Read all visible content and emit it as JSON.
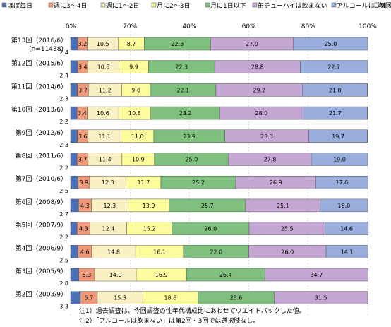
{
  "chart_data": {
    "type": "bar",
    "orientation": "horizontal",
    "stacked": true,
    "xlim": [
      0,
      100
    ],
    "x_ticks": [
      "0%",
      "20%",
      "40%",
      "60%",
      "80%",
      "100%"
    ],
    "legend_position": "top",
    "categories": [
      "第13回（2016/6）",
      "第12回（2015/6）",
      "第11回（2014/6）",
      "第10回（2013/6）",
      "第9回（2012/6）",
      "第8回（2011/6）",
      "第7回（2010/6）",
      "第6回（2008/9）",
      "第5回（2007/9）",
      "第4回（2006/9）",
      "第3回（2005/9）",
      "第2回（2003/9）"
    ],
    "category_notes": [
      "(n=11438)",
      "",
      "",
      "",
      "",
      "",
      "",
      "",
      "",
      "",
      "",
      ""
    ],
    "series": [
      {
        "name": "ほぼ毎日",
        "color": "#4a6fb5",
        "values": [
          2.4,
          2.4,
          2.3,
          2.2,
          2.3,
          2.2,
          2.5,
          2.7,
          2.2,
          2.5,
          2.8,
          3.3
        ]
      },
      {
        "name": "週に3～4日",
        "color": "#f09a7a",
        "values": [
          3.2,
          3.4,
          3.7,
          3.4,
          3.6,
          3.7,
          3.9,
          4.3,
          4.3,
          4.6,
          5.3,
          5.7
        ]
      },
      {
        "name": "週に1～2日",
        "color": "#fbf0c3",
        "values": [
          10.5,
          10.5,
          11.2,
          10.6,
          11.1,
          11.4,
          12.3,
          12.3,
          12.4,
          14.8,
          14.0,
          15.3
        ]
      },
      {
        "name": "月に2～3日",
        "color": "#fcfc9c",
        "values": [
          8.7,
          9.9,
          9.6,
          10.8,
          11.0,
          10.9,
          11.7,
          13.9,
          15.2,
          16.1,
          16.9,
          18.6
        ]
      },
      {
        "name": "月に1日以下",
        "color": "#7fc07f",
        "values": [
          22.3,
          22.3,
          22.1,
          23.2,
          23.9,
          25.0,
          25.2,
          25.7,
          26.0,
          22.0,
          26.4,
          25.6
        ]
      },
      {
        "name": "缶チューハイは飲まない",
        "color": "#c4a6d3",
        "values": [
          27.9,
          28.8,
          29.2,
          28.0,
          28.3,
          27.8,
          26.9,
          25.1,
          25.5,
          26.0,
          34.7,
          31.5
        ]
      },
      {
        "name": "アルコールは飲まない",
        "color": "#9aaede",
        "values": [
          25.0,
          22.7,
          21.8,
          21.7,
          19.7,
          19.0,
          17.6,
          16.0,
          14.6,
          14.1,
          0,
          0
        ]
      },
      {
        "name": "無回答",
        "color": "#ffffff",
        "values": [
          0.0,
          0.0,
          0.1,
          0.1,
          0.1,
          0.0,
          0.0,
          0.0,
          0.0,
          0.0,
          0.0,
          0.0
        ]
      }
    ],
    "value_label_series": [
      1,
      2,
      3,
      4,
      5,
      6
    ]
  },
  "notes": [
    "注1）過去調査は、今回調査の性年代構成比にあわせてウエイトバックした値。",
    "注2）「アルコールは飲まない」は第2回・3回では選択肢なし。"
  ]
}
